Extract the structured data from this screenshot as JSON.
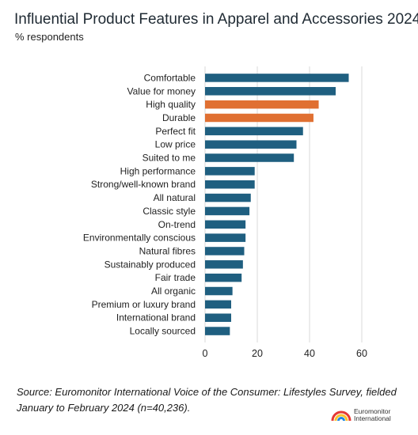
{
  "title": "Influential Product Features in Apparel and Accessories 2024",
  "subtitle": "% respondents",
  "source_prefix": "Source:",
  "source_text": " Euromonitor International Voice of the Consumer: Lifestyles Survey, fielded January to February 2024 (n=40,236).",
  "logo": {
    "line1": "Euromonitor",
    "line2": "International"
  },
  "colors": {
    "primary": "#1f5f80",
    "highlight": "#e07032",
    "grid": "#d9d9d9"
  },
  "chart_data": {
    "type": "bar",
    "orientation": "horizontal",
    "categories": [
      "Comfortable",
      "Value for money",
      "High quality",
      "Durable",
      "Perfect fit",
      "Low price",
      "Suited to me",
      "High performance",
      "Strong/well-known brand",
      "All natural",
      "Classic style",
      "On-trend",
      "Environmentally conscious",
      "Natural fibres",
      "Sustainably produced",
      "Fair trade",
      "All organic",
      "Premium or luxury brand",
      "International brand",
      "Locally sourced"
    ],
    "values": [
      55,
      50,
      43.5,
      41.5,
      37.5,
      35,
      34,
      19,
      19,
      17.5,
      17,
      15.5,
      15.5,
      15,
      14.5,
      14,
      10.5,
      10,
      10,
      9.5
    ],
    "highlighted": [
      "High quality",
      "Durable"
    ],
    "xlim": [
      0,
      65
    ],
    "xticks": [
      0,
      20,
      40,
      60
    ],
    "grid": true
  }
}
